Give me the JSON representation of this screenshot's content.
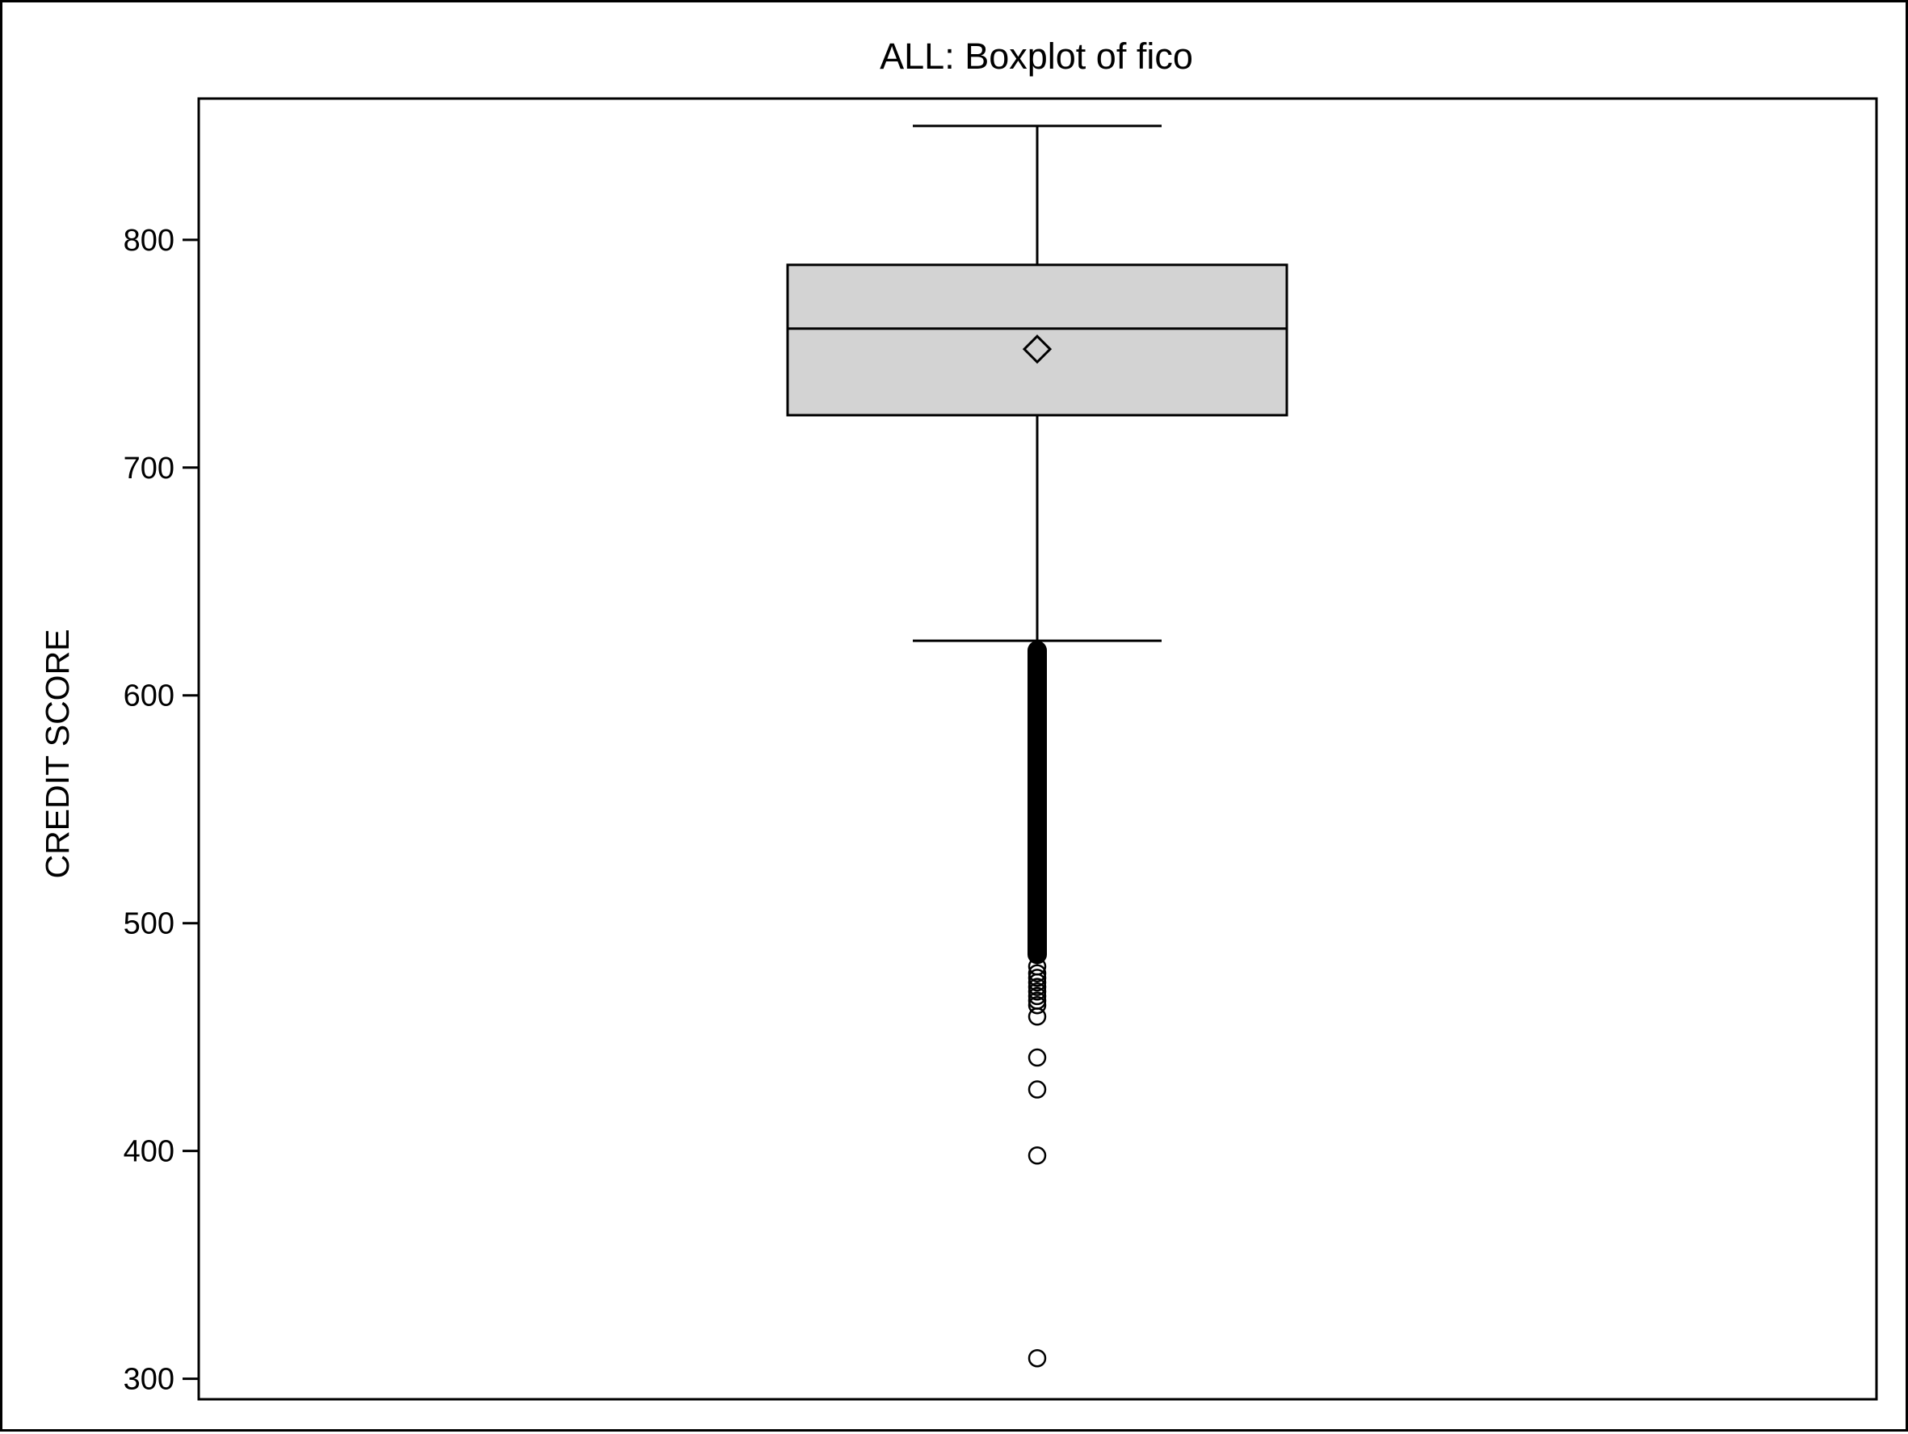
{
  "chart_data": {
    "type": "boxplot",
    "title": "ALL: Boxplot of fico",
    "xlabel": "",
    "ylabel": "CREDIT SCORE",
    "ylim": [
      291,
      862
    ],
    "yticks": [
      300,
      400,
      500,
      600,
      700,
      800
    ],
    "grid": false,
    "box": {
      "whisker_high": 850,
      "q3": 789,
      "median": 761,
      "mean": 752,
      "q1": 723,
      "whisker_low": 624
    },
    "outlier_band": [
      482,
      624
    ],
    "outliers": [
      481,
      478,
      476,
      474,
      472,
      470,
      468,
      466,
      464,
      459,
      441,
      427,
      398,
      309
    ],
    "colors": {
      "box_fill": "#d3d3d3",
      "line": "#000000",
      "background": "#ffffff"
    }
  }
}
